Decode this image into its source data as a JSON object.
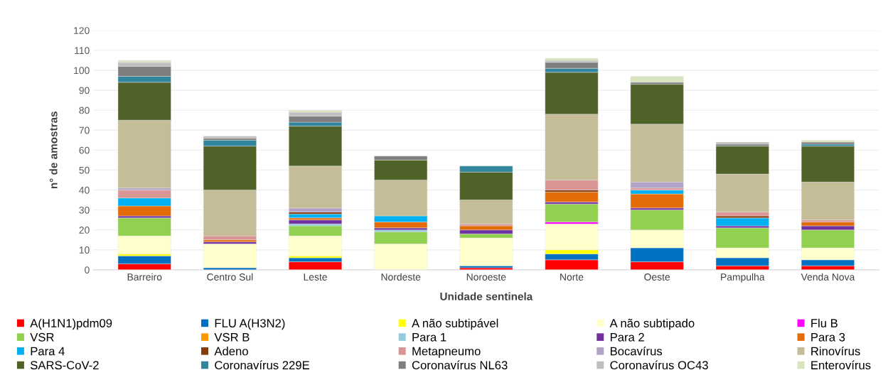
{
  "chart_data": {
    "type": "bar",
    "stacked": true,
    "xlabel": "Unidade sentinela",
    "ylabel": "n° de amostras",
    "categories": [
      "Barreiro",
      "Centro Sul",
      "Leste",
      "Nordeste",
      "Noroeste",
      "Norte",
      "Oeste",
      "Pampulha",
      "Venda Nova"
    ],
    "ylim": [
      0,
      120
    ],
    "yticks": [
      0,
      10,
      20,
      30,
      40,
      50,
      60,
      70,
      80,
      90,
      100,
      110,
      120
    ],
    "grid": "y",
    "legend": "bottom",
    "series": [
      {
        "name": "A(H1N1)pdm09",
        "color": "#ff0000",
        "values": [
          3,
          0,
          4,
          0,
          1,
          5,
          4,
          2,
          2
        ]
      },
      {
        "name": "FLU A(H3N2)",
        "color": "#0070c0",
        "values": [
          4,
          1,
          2,
          0,
          1,
          3,
          7,
          4,
          3
        ]
      },
      {
        "name": "A não subtipável",
        "color": "#ffff00",
        "values": [
          1,
          0,
          1,
          0,
          0,
          2,
          0,
          0,
          0
        ]
      },
      {
        "name": "A não subtipado",
        "color": "#ffffcc",
        "values": [
          9,
          12,
          10,
          13,
          14,
          13,
          9,
          5,
          6
        ]
      },
      {
        "name": "Flu B",
        "color": "#ff00ff",
        "values": [
          0,
          0,
          0,
          0,
          0,
          1,
          0,
          0,
          0
        ]
      },
      {
        "name": "VSR",
        "color": "#92d050",
        "values": [
          9,
          0,
          5,
          6,
          2,
          9,
          10,
          10,
          9
        ]
      },
      {
        "name": "VSR B",
        "color": "#ff9900",
        "values": [
          0,
          0,
          0,
          0,
          0,
          0,
          0,
          0,
          0
        ]
      },
      {
        "name": "Para 1",
        "color": "#92cddc",
        "values": [
          0,
          0,
          1,
          1,
          0,
          0,
          0,
          0,
          0
        ]
      },
      {
        "name": "Para 2",
        "color": "#7030a0",
        "values": [
          1,
          1,
          2,
          1,
          2,
          1,
          1,
          1,
          2
        ]
      },
      {
        "name": "Para 3",
        "color": "#e36c09",
        "values": [
          5,
          1,
          1,
          3,
          2,
          5,
          7,
          0,
          2
        ]
      },
      {
        "name": "Para 4",
        "color": "#00b0f0",
        "values": [
          4,
          0,
          2,
          3,
          0,
          0,
          2,
          4,
          0
        ]
      },
      {
        "name": "Adeno",
        "color": "#843c0c",
        "values": [
          0,
          0,
          1,
          0,
          0,
          1,
          0,
          1,
          0
        ]
      },
      {
        "name": "Metapneumo",
        "color": "#d99694",
        "values": [
          4,
          2,
          0,
          0,
          1,
          5,
          1,
          2,
          1
        ]
      },
      {
        "name": "Bocavírus",
        "color": "#b3a2c7",
        "values": [
          1,
          0,
          2,
          0,
          0,
          0,
          3,
          0,
          0
        ]
      },
      {
        "name": "Rinovírus",
        "color": "#c4bd97",
        "values": [
          34,
          23,
          21,
          18,
          12,
          33,
          29,
          19,
          19
        ]
      },
      {
        "name": "SARS-CoV-2",
        "color": "#4f6228",
        "values": [
          19,
          22,
          20,
          10,
          14,
          21,
          20,
          14,
          18
        ]
      },
      {
        "name": "Coronavírus 229E",
        "color": "#31859c",
        "values": [
          3,
          3,
          2,
          0,
          3,
          2,
          0,
          0,
          1
        ]
      },
      {
        "name": "Coronavírus NL63",
        "color": "#7f7f7f",
        "values": [
          5,
          1,
          3,
          2,
          0,
          3,
          1,
          1,
          1
        ]
      },
      {
        "name": "Coronavírus OC43",
        "color": "#bfbfbf",
        "values": [
          2,
          1,
          2,
          0,
          0,
          1,
          0,
          1,
          0
        ]
      },
      {
        "name": "Enterovírus",
        "color": "#d7e4bd",
        "values": [
          1,
          0,
          1,
          0,
          0,
          1,
          3,
          0,
          1
        ]
      }
    ]
  }
}
